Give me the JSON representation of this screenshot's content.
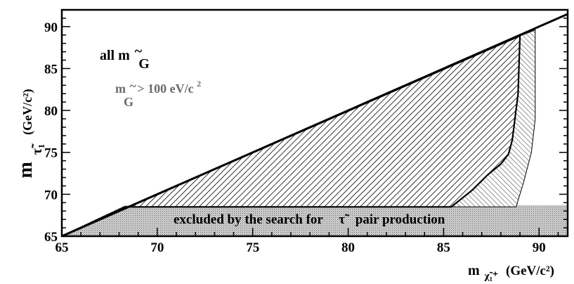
{
  "chart_data": {
    "type": "area",
    "xlabel": {
      "main": "m",
      "sub": "χ̃₁⁺",
      "unit": "(GeV/c²)"
    },
    "ylabel": {
      "main": "m",
      "sub": "τ̃₁",
      "unit": "(GeV/c²)"
    },
    "xlim": [
      65,
      91.5
    ],
    "ylim": [
      65,
      92
    ],
    "x_ticks": [
      "65",
      "70",
      "75",
      "80",
      "85",
      "90"
    ],
    "y_ticks": [
      "65",
      "70",
      "75",
      "80",
      "85",
      "90"
    ],
    "kinematic_limit": {
      "x": [
        65,
        91.5
      ],
      "y": [
        65,
        91.5
      ]
    },
    "regions": [
      {
        "name": "all m G~",
        "style": "hatch-diagonal",
        "color": "#000000",
        "boundary": [
          [
            65,
            65
          ],
          [
            68.3,
            68.5
          ],
          [
            85.4,
            68.5
          ],
          [
            86.5,
            70.5
          ],
          [
            87.3,
            72.3
          ],
          [
            88.0,
            73.6
          ],
          [
            88.4,
            74.8
          ],
          [
            88.6,
            76.5
          ],
          [
            88.9,
            82
          ],
          [
            89.0,
            88.9
          ],
          [
            65,
            65
          ]
        ]
      },
      {
        "name": "m G~ > 100 eV/c2",
        "style": "hatch-crosshatch",
        "color": "#6b6b6b",
        "boundary": [
          [
            85.4,
            68.5
          ],
          [
            86.5,
            70.5
          ],
          [
            87.3,
            72.3
          ],
          [
            88.0,
            73.6
          ],
          [
            88.4,
            74.8
          ],
          [
            88.6,
            76.5
          ],
          [
            88.9,
            82
          ],
          [
            89.0,
            88.9
          ],
          [
            89.8,
            89.6
          ],
          [
            89.8,
            79
          ],
          [
            89.6,
            75
          ],
          [
            89.2,
            71.5
          ],
          [
            88.8,
            68.5
          ]
        ]
      },
      {
        "name": "excluded by the search for τ̃ pair production",
        "style": "stipple",
        "color": "#555555",
        "boundary": [
          [
            68.3,
            68.7
          ],
          [
            91.5,
            68.7
          ],
          [
            91.5,
            65
          ],
          [
            65,
            65
          ]
        ]
      }
    ],
    "annotations": {
      "all_mg": {
        "prefix": "all m",
        "sub": "G",
        "tilde": "~"
      },
      "mg_100": {
        "prefix": "m",
        "sub": "G",
        "tilde": "~",
        "suffix": "> 100 eV/c",
        "sup": "2"
      },
      "band_label": {
        "before": "excluded by the search for",
        "symbol": "τ̃",
        "after": "pair production"
      }
    }
  }
}
